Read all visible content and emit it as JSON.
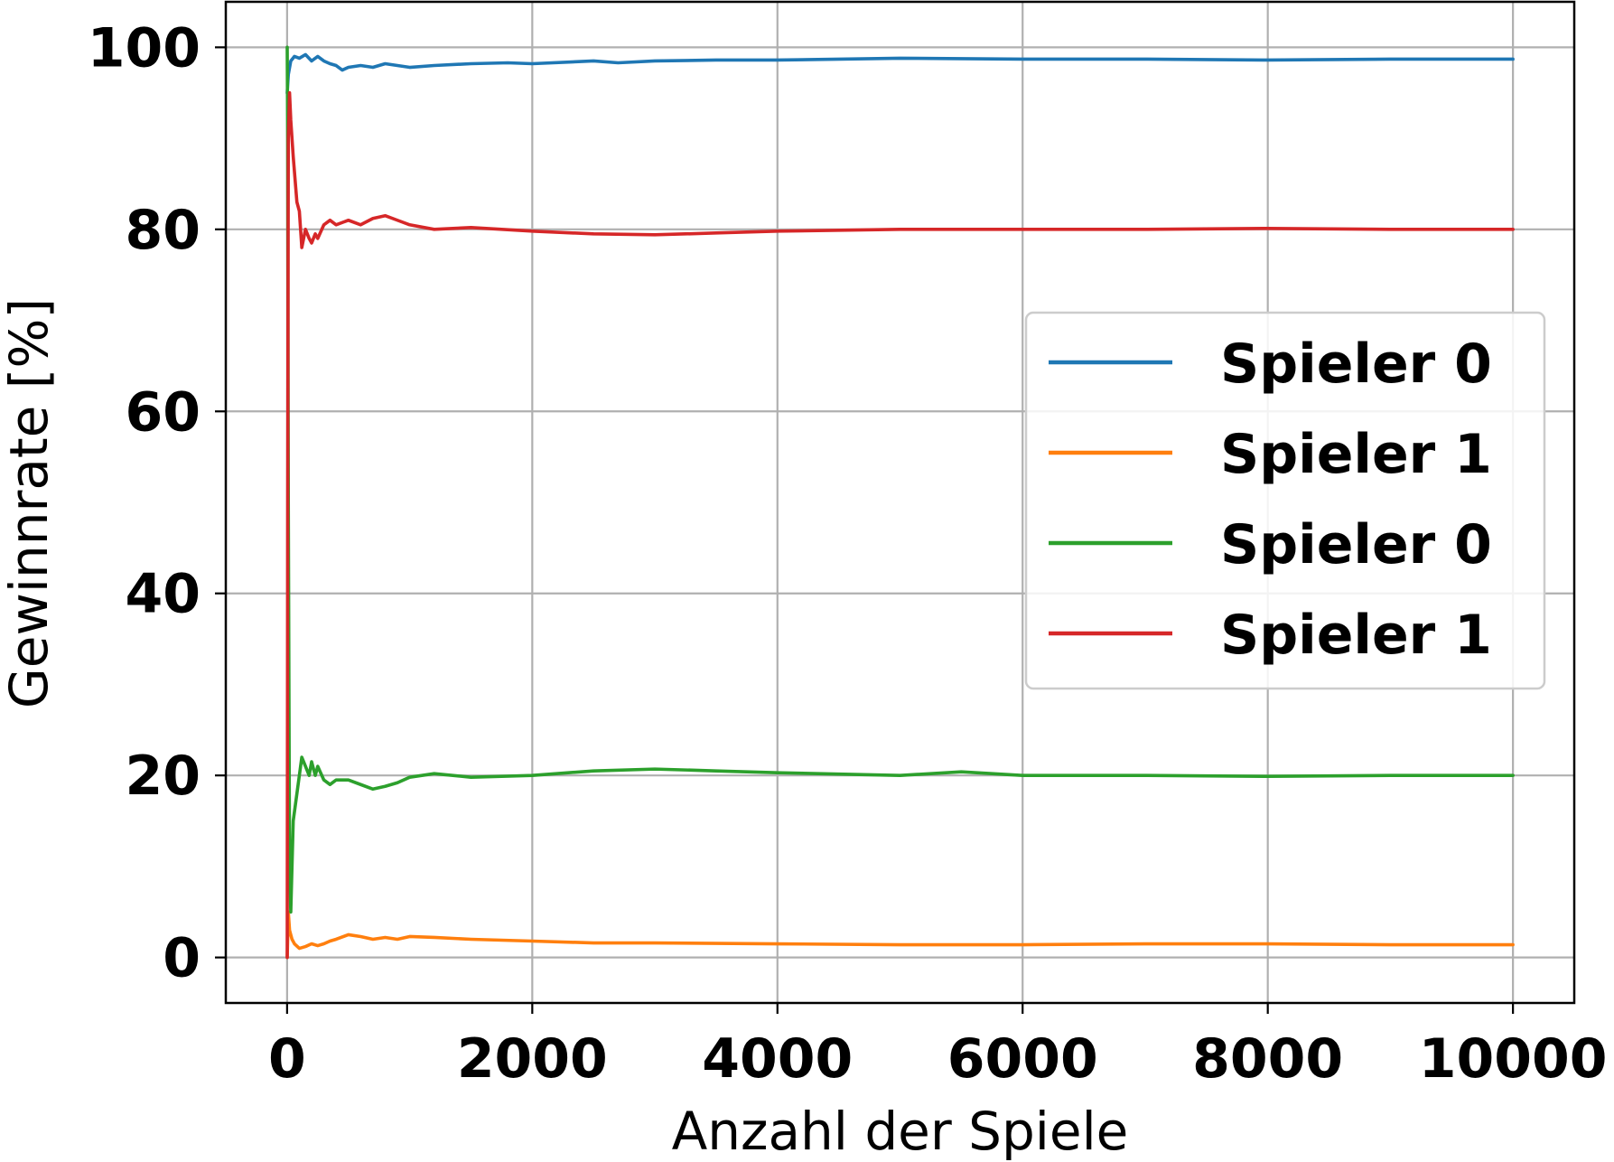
{
  "chart_data": {
    "type": "line",
    "title": "",
    "xlabel": "Anzahl der Spiele",
    "ylabel": "Gewinnrate [%]",
    "xlim": [
      -500,
      10500
    ],
    "ylim": [
      -5,
      105
    ],
    "xticks": [
      0,
      2000,
      4000,
      6000,
      8000,
      10000
    ],
    "xtick_labels": [
      "0",
      "2000",
      "4000",
      "6000",
      "8000",
      "10000"
    ],
    "yticks": [
      0,
      20,
      40,
      60,
      80,
      100
    ],
    "ytick_labels": [
      "0",
      "20",
      "40",
      "60",
      "80",
      "100"
    ],
    "grid": true,
    "legend_position": "center-right",
    "series": [
      {
        "name": "Spieler 0",
        "color": "#1f77b4",
        "x": [
          1,
          10,
          30,
          60,
          100,
          150,
          200,
          250,
          300,
          350,
          400,
          450,
          500,
          600,
          700,
          800,
          900,
          1000,
          1200,
          1500,
          1800,
          2000,
          2500,
          2700,
          3000,
          3500,
          4000,
          5000,
          6000,
          7000,
          8000,
          9000,
          10000
        ],
        "y": [
          95,
          97,
          98.5,
          99,
          98.8,
          99.2,
          98.5,
          99.0,
          98.5,
          98.2,
          98.0,
          97.5,
          97.8,
          98.0,
          97.8,
          98.2,
          98.0,
          97.8,
          98.0,
          98.2,
          98.3,
          98.2,
          98.5,
          98.3,
          98.5,
          98.6,
          98.6,
          98.8,
          98.7,
          98.7,
          98.6,
          98.7,
          98.7
        ]
      },
      {
        "name": "Spieler 1",
        "color": "#ff7f0e",
        "x": [
          1,
          5,
          10,
          20,
          40,
          60,
          100,
          150,
          200,
          250,
          300,
          350,
          400,
          500,
          600,
          700,
          800,
          900,
          1000,
          1200,
          1500,
          2000,
          2500,
          3000,
          4000,
          5000,
          6000,
          7000,
          8000,
          9000,
          10000
        ],
        "y": [
          0,
          2,
          5,
          3,
          2,
          1.5,
          1.0,
          1.2,
          1.5,
          1.3,
          1.5,
          1.8,
          2.0,
          2.5,
          2.3,
          2.0,
          2.2,
          2.0,
          2.3,
          2.2,
          2.0,
          1.8,
          1.6,
          1.6,
          1.5,
          1.4,
          1.4,
          1.5,
          1.5,
          1.4,
          1.4
        ]
      },
      {
        "name": "Spieler 0",
        "color": "#2ca02c",
        "x": [
          1,
          5,
          10,
          20,
          30,
          50,
          80,
          100,
          120,
          150,
          180,
          200,
          230,
          250,
          300,
          350,
          400,
          500,
          600,
          700,
          800,
          900,
          1000,
          1200,
          1500,
          2000,
          2500,
          3000,
          3500,
          4000,
          5000,
          5500,
          6000,
          7000,
          8000,
          9000,
          10000
        ],
        "y": [
          100,
          90,
          50,
          10,
          5,
          15,
          18,
          20,
          22,
          21,
          20,
          21.5,
          20,
          21,
          19.5,
          19,
          19.5,
          19.5,
          19,
          18.5,
          18.8,
          19.2,
          19.8,
          20.2,
          19.8,
          20.0,
          20.5,
          20.7,
          20.5,
          20.3,
          20.0,
          20.4,
          20.0,
          20.0,
          19.9,
          20.0,
          20.0
        ]
      },
      {
        "name": "Spieler 1",
        "color": "#d62728",
        "x": [
          1,
          5,
          10,
          20,
          30,
          50,
          80,
          100,
          120,
          150,
          180,
          200,
          230,
          250,
          300,
          350,
          400,
          500,
          600,
          700,
          800,
          900,
          1000,
          1200,
          1500,
          2000,
          2500,
          3000,
          3500,
          4000,
          5000,
          6000,
          7000,
          8000,
          9000,
          10000
        ],
        "y": [
          0,
          50,
          90,
          95,
          92,
          88,
          83,
          82,
          78,
          80,
          79,
          78.5,
          79.5,
          79,
          80.5,
          81,
          80.5,
          81,
          80.5,
          81.2,
          81.5,
          81,
          80.5,
          80,
          80.2,
          79.8,
          79.5,
          79.4,
          79.6,
          79.8,
          80.0,
          80.0,
          80.0,
          80.1,
          80.0,
          80.0
        ]
      }
    ]
  }
}
